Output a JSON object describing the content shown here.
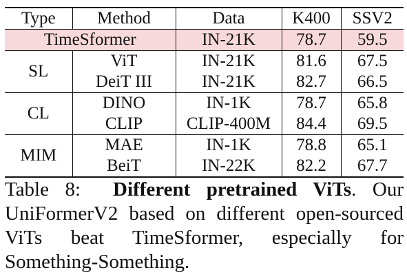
{
  "table": {
    "headers": [
      "Type",
      "Method",
      "Data",
      "K400",
      "SSV2"
    ],
    "timesformer": {
      "label": "TimeSformer",
      "data": "IN-21K",
      "k400": "78.7",
      "ssv2": "59.5"
    },
    "groups": [
      {
        "type": "SL",
        "rows": [
          {
            "method": "ViT",
            "data": "IN-21K",
            "k400": "81.6",
            "ssv2": "67.5"
          },
          {
            "method": "DeiT III",
            "data": "IN-21K",
            "k400": "82.7",
            "ssv2": "66.5"
          }
        ]
      },
      {
        "type": "CL",
        "rows": [
          {
            "method": "DINO",
            "data": "IN-1K",
            "k400": "78.7",
            "ssv2": "65.8"
          },
          {
            "method": "CLIP",
            "data": "CLIP-400M",
            "k400": "84.4",
            "ssv2": "69.5"
          }
        ]
      },
      {
        "type": "MIM",
        "rows": [
          {
            "method": "MAE",
            "data": "IN-1K",
            "k400": "78.8",
            "ssv2": "65.1"
          },
          {
            "method": "BeiT",
            "data": "IN-22K",
            "k400": "82.2",
            "ssv2": "67.7"
          }
        ]
      }
    ],
    "highlight_color": "#f8d9db"
  },
  "caption": {
    "label": "Table 8:",
    "title": "Different pretrained ViTs",
    "body": ". Our UniFormerV2 based on different open-sourced ViTs beat TimeSformer, especially for Something-Something."
  }
}
